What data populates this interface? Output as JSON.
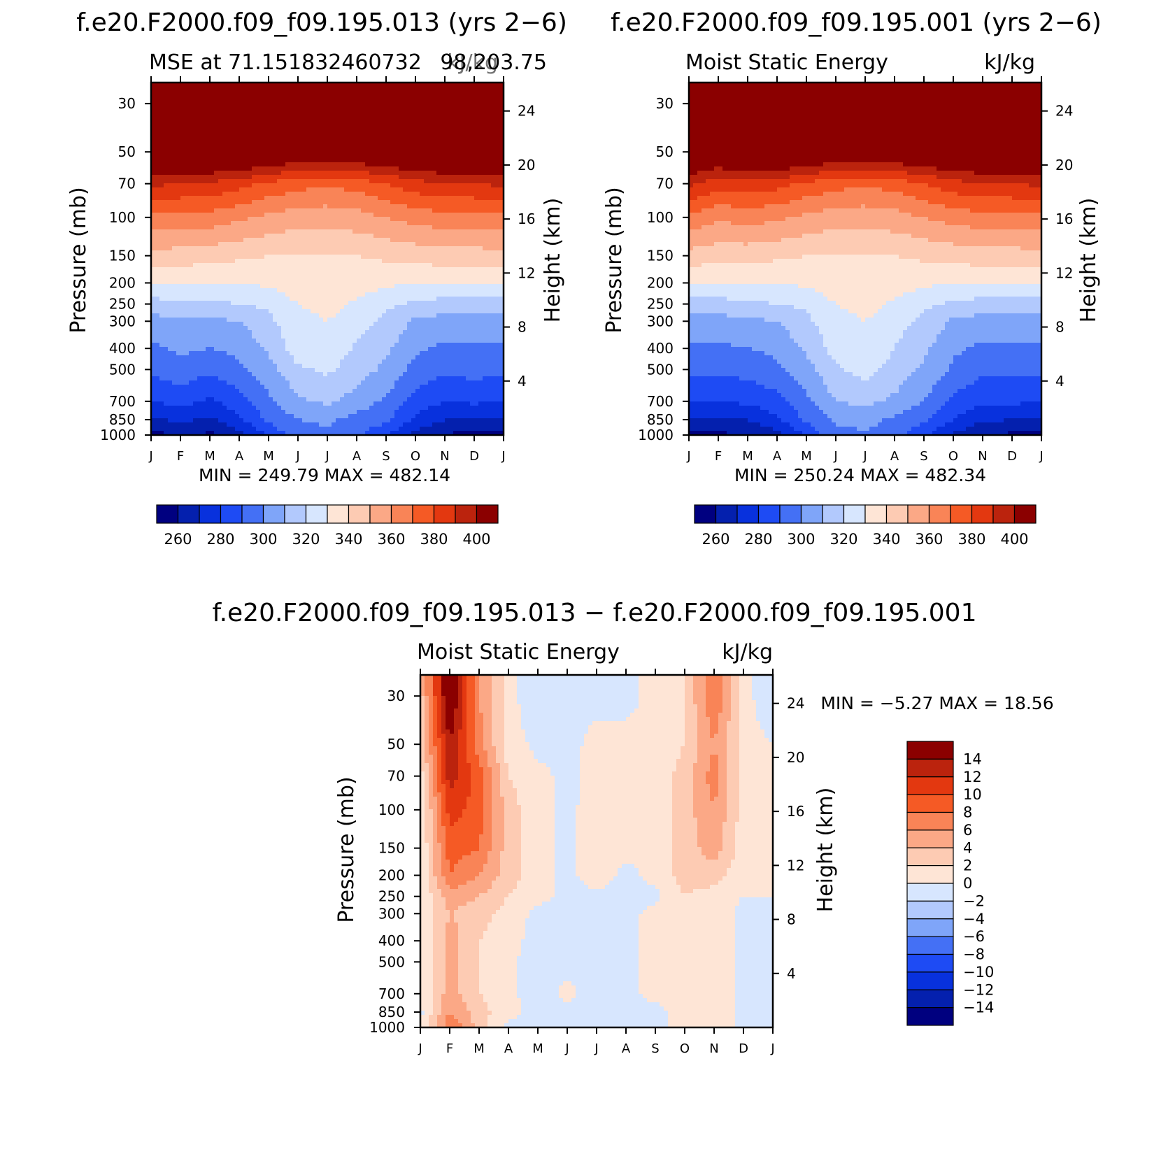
{
  "colors": {
    "abs_palette": [
      "#000080",
      "#0420AE",
      "#0831DD",
      "#1E4BF4",
      "#4470F5",
      "#7FA5F9",
      "#B2C9FD",
      "#D7E6FE",
      "#FEE5D6",
      "#FDCBB3",
      "#FBA886",
      "#F98457",
      "#F55A25",
      "#E33810",
      "#BB230D",
      "#8B0000"
    ],
    "diff_palette": [
      "#00007F",
      "#0420AE",
      "#0831DD",
      "#1E4BF4",
      "#4470F5",
      "#7FA5F9",
      "#B2C9FD",
      "#D7E6FE",
      "#FEE5D6",
      "#FDCBB3",
      "#FBA886",
      "#F98457",
      "#F55A25",
      "#E33810",
      "#BB230D",
      "#8B0000"
    ]
  },
  "chart_data": [
    {
      "type": "heatmap",
      "title": "f.e20.F2000.f09_f09.195.013 (yrs 2−6)",
      "left_label": "MSE at 71.151832460732",
      "right_label": "98,203.75",
      "units_label": "kJ/kg",
      "xlabel": "",
      "ylabel": "Pressure (mb)",
      "right_axis_label": "Height (km)",
      "x_ticks": [
        "J",
        "F",
        "M",
        "A",
        "M",
        "J",
        "J",
        "A",
        "S",
        "O",
        "N",
        "D",
        "J"
      ],
      "y_ticks": [
        "30",
        "50",
        "70",
        "100",
        "150",
        "200",
        "250",
        "300",
        "400",
        "500",
        "700",
        "850",
        "1000"
      ],
      "y_tick_values": [
        30,
        50,
        70,
        100,
        150,
        200,
        250,
        300,
        400,
        500,
        700,
        850,
        1000
      ],
      "height_ticks": [
        "4",
        "8",
        "12",
        "16",
        "20",
        "24"
      ],
      "height_tick_values": [
        4,
        8,
        12,
        16,
        20,
        24
      ],
      "minmax_text": "MIN =  249.79  MAX =  482.14",
      "levels": [
        260,
        270,
        280,
        290,
        300,
        310,
        320,
        330,
        340,
        350,
        360,
        370,
        380,
        390,
        400
      ],
      "colorbar_labels": [
        "260",
        "280",
        "300",
        "320",
        "340",
        "360",
        "380",
        "400"
      ],
      "values": {
        "pressure_levels": [
          1000,
          850,
          700,
          500,
          400,
          300,
          250,
          200,
          150,
          100,
          70,
          50,
          30
        ],
        "months": [
          "J",
          "F",
          "M",
          "A",
          "M",
          "J",
          "J",
          "A",
          "S",
          "O",
          "N",
          "D",
          "J"
        ],
        "months_values": [
          [
            255,
            262,
            258,
            266,
            282,
            295,
            298,
            292,
            282,
            266,
            260,
            255,
            255
          ],
          [
            268,
            272,
            268,
            278,
            292,
            300,
            302,
            296,
            292,
            278,
            270,
            268,
            268
          ],
          [
            280,
            284,
            278,
            286,
            298,
            308,
            312,
            306,
            298,
            286,
            280,
            282,
            280
          ],
          [
            292,
            296,
            292,
            298,
            306,
            318,
            322,
            314,
            308,
            296,
            292,
            294,
            292
          ],
          [
            298,
            302,
            300,
            302,
            312,
            326,
            328,
            318,
            312,
            302,
            298,
            298,
            298
          ],
          [
            306,
            308,
            308,
            310,
            318,
            326,
            330,
            324,
            318,
            308,
            306,
            306,
            306
          ],
          [
            316,
            318,
            318,
            320,
            322,
            330,
            334,
            328,
            322,
            318,
            316,
            316,
            316
          ],
          [
            330,
            330,
            330,
            330,
            332,
            336,
            338,
            336,
            332,
            330,
            330,
            330,
            330
          ],
          [
            346,
            346,
            344,
            342,
            340,
            340,
            340,
            340,
            342,
            344,
            346,
            346,
            346
          ],
          [
            368,
            366,
            366,
            362,
            358,
            354,
            354,
            356,
            360,
            364,
            366,
            366,
            368
          ],
          [
            392,
            390,
            388,
            384,
            378,
            374,
            372,
            374,
            380,
            386,
            390,
            390,
            392
          ],
          [
            420,
            422,
            424,
            422,
            418,
            414,
            412,
            414,
            418,
            420,
            422,
            422,
            420
          ],
          [
            460,
            462,
            465,
            468,
            472,
            478,
            480,
            476,
            470,
            464,
            460,
            458,
            460
          ]
        ]
      }
    },
    {
      "type": "heatmap",
      "title": "f.e20.F2000.f09_f09.195.001 (yrs 2−6)",
      "left_label": "Moist Static Energy",
      "units_label": "kJ/kg",
      "xlabel": "",
      "ylabel": "Pressure (mb)",
      "right_axis_label": "Height (km)",
      "x_ticks": [
        "J",
        "F",
        "M",
        "A",
        "M",
        "J",
        "J",
        "A",
        "S",
        "O",
        "N",
        "D",
        "J"
      ],
      "y_ticks": [
        "30",
        "50",
        "70",
        "100",
        "150",
        "200",
        "250",
        "300",
        "400",
        "500",
        "700",
        "850",
        "1000"
      ],
      "y_tick_values": [
        30,
        50,
        70,
        100,
        150,
        200,
        250,
        300,
        400,
        500,
        700,
        850,
        1000
      ],
      "height_ticks": [
        "4",
        "8",
        "12",
        "16",
        "20",
        "24"
      ],
      "height_tick_values": [
        4,
        8,
        12,
        16,
        20,
        24
      ],
      "minmax_text": "MIN =  250.24  MAX =  482.34",
      "levels": [
        260,
        270,
        280,
        290,
        300,
        310,
        320,
        330,
        340,
        350,
        360,
        370,
        380,
        390,
        400
      ],
      "colorbar_labels": [
        "260",
        "280",
        "300",
        "320",
        "340",
        "360",
        "380",
        "400"
      ],
      "values": {
        "pressure_levels": [
          1000,
          850,
          700,
          500,
          400,
          300,
          250,
          200,
          150,
          100,
          70,
          50,
          30
        ],
        "months_values": [
          [
            256,
            258,
            260,
            266,
            282,
            296,
            298,
            294,
            282,
            268,
            260,
            258,
            256
          ],
          [
            268,
            268,
            270,
            278,
            292,
            302,
            304,
            298,
            292,
            280,
            272,
            270,
            268
          ],
          [
            280,
            280,
            282,
            286,
            298,
            310,
            312,
            308,
            300,
            288,
            282,
            282,
            280
          ],
          [
            292,
            292,
            294,
            298,
            306,
            318,
            324,
            316,
            308,
            298,
            292,
            292,
            292
          ],
          [
            298,
            298,
            300,
            302,
            312,
            324,
            328,
            320,
            312,
            302,
            298,
            298,
            298
          ],
          [
            306,
            306,
            308,
            310,
            318,
            326,
            330,
            324,
            318,
            308,
            306,
            306,
            306
          ],
          [
            316,
            316,
            318,
            320,
            322,
            330,
            334,
            328,
            322,
            318,
            316,
            316,
            316
          ],
          [
            330,
            330,
            330,
            330,
            332,
            336,
            338,
            336,
            332,
            330,
            330,
            330,
            330
          ],
          [
            346,
            344,
            344,
            342,
            340,
            340,
            340,
            340,
            342,
            344,
            346,
            346,
            346
          ],
          [
            368,
            362,
            364,
            362,
            358,
            354,
            354,
            356,
            360,
            364,
            366,
            366,
            368
          ],
          [
            392,
            384,
            386,
            384,
            378,
            374,
            372,
            374,
            380,
            386,
            390,
            390,
            392
          ],
          [
            420,
            416,
            422,
            422,
            418,
            414,
            412,
            414,
            418,
            420,
            422,
            422,
            420
          ],
          [
            460,
            458,
            464,
            468,
            472,
            478,
            480,
            476,
            470,
            464,
            460,
            458,
            460
          ]
        ]
      }
    },
    {
      "type": "heatmap",
      "title": "f.e20.F2000.f09_f09.195.013 − f.e20.F2000.f09_f09.195.001",
      "left_label": "Moist Static Energy",
      "units_label": "kJ/kg",
      "xlabel": "",
      "ylabel": "Pressure (mb)",
      "right_axis_label": "Height (km)",
      "x_ticks": [
        "J",
        "F",
        "M",
        "A",
        "M",
        "J",
        "J",
        "A",
        "S",
        "O",
        "N",
        "D",
        "J"
      ],
      "y_ticks": [
        "30",
        "50",
        "70",
        "100",
        "150",
        "200",
        "250",
        "300",
        "400",
        "500",
        "700",
        "850",
        "1000"
      ],
      "y_tick_values": [
        30,
        50,
        70,
        100,
        150,
        200,
        250,
        300,
        400,
        500,
        700,
        850,
        1000
      ],
      "height_ticks": [
        "4",
        "8",
        "12",
        "16",
        "20",
        "24"
      ],
      "height_tick_values": [
        4,
        8,
        12,
        16,
        20,
        24
      ],
      "minmax_text": "MIN =   −5.27  MAX =   18.56",
      "levels": [
        -14,
        -12,
        -10,
        -8,
        -6,
        -4,
        -2,
        0,
        2,
        4,
        6,
        8,
        10,
        12,
        14
      ],
      "colorbar_labels": [
        "14",
        "12",
        "10",
        "8",
        "6",
        "4",
        "2",
        "0",
        "−2",
        "−4",
        "−6",
        "−8",
        "−10",
        "−12",
        "−14"
      ],
      "values": {
        "pressure_levels": [
          1000,
          850,
          700,
          500,
          400,
          300,
          250,
          200,
          150,
          100,
          70,
          50,
          30
        ],
        "months_values": [
          [
            -0.5,
            8,
            3,
            -0.5,
            -0.5,
            -0.5,
            -1,
            -1,
            -0.5,
            0.5,
            2,
            -1,
            -0.5
          ],
          [
            -0.5,
            6,
            3,
            0.5,
            -0.5,
            -0.5,
            -1,
            -0.5,
            -0.5,
            0.5,
            1,
            -0.5,
            -0.5
          ],
          [
            0,
            5,
            2,
            0.5,
            -1,
            0.5,
            -1,
            -0.5,
            0.5,
            1,
            1,
            -0.5,
            0
          ],
          [
            0,
            5,
            2,
            0.5,
            -1,
            -0.5,
            -0.5,
            -0.5,
            0.5,
            0,
            1,
            -0.5,
            0
          ],
          [
            0,
            5,
            2,
            0.5,
            -0.5,
            -0.5,
            -0.5,
            -0.5,
            0.5,
            1,
            1,
            -0.5,
            0
          ],
          [
            0,
            4,
            3,
            1,
            -0.5,
            -0.5,
            -0.5,
            -0.5,
            0.5,
            1,
            1,
            -0.5,
            0
          ],
          [
            0,
            5,
            4,
            2,
            0.5,
            -0.5,
            -0.5,
            -0.5,
            -0.5,
            2,
            1,
            0,
            0
          ],
          [
            0,
            8,
            6,
            3,
            0.5,
            -0.5,
            1,
            -0.5,
            0.5,
            3,
            3,
            0.5,
            0
          ],
          [
            0,
            9,
            8,
            3,
            0.5,
            -0.5,
            1,
            0.5,
            0.5,
            3,
            5,
            1,
            0
          ],
          [
            0,
            11,
            9,
            3,
            0.5,
            -0.5,
            1,
            0.5,
            0.5,
            3,
            6,
            1,
            0
          ],
          [
            1,
            13,
            9,
            2,
            0.5,
            -0.5,
            0.5,
            0.5,
            0.5,
            3,
            7,
            1,
            0
          ],
          [
            2,
            14,
            7,
            1,
            -0.5,
            -0.5,
            0.5,
            0.5,
            0.5,
            2,
            6,
            1,
            0
          ],
          [
            3,
            17,
            6,
            1,
            -2,
            -0.5,
            -0.5,
            -0.5,
            0.5,
            2,
            8,
            1,
            -2
          ]
        ]
      }
    }
  ]
}
